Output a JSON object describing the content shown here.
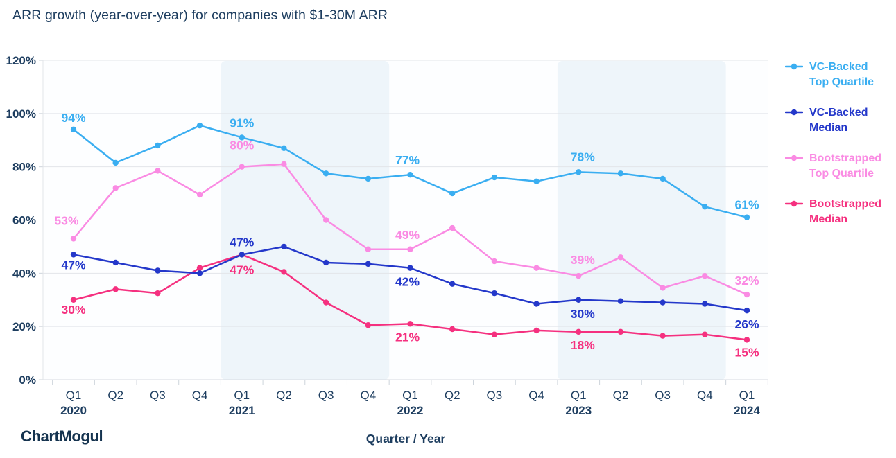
{
  "title": "ARR growth (year-over-year) for companies with $1-30M ARR",
  "footer": {
    "logo": "ChartMogul"
  },
  "colors": {
    "navy_text": "#1d3d5f",
    "grid": "#e2e5e9",
    "axis": "#d6dbe1",
    "tick": "#cdd4db",
    "band": "#eef5fa",
    "plot_bg": "#fdfeff"
  },
  "chart_data": {
    "type": "line",
    "title": "ARR growth (year-over-year) for companies with $1-30M ARR",
    "xlabel": "Quarter / Year",
    "ylabel": "",
    "ylim": [
      0,
      120
    ],
    "y_ticks": [
      120,
      100,
      80,
      60,
      40,
      20,
      0
    ],
    "y_tick_suffix": "%",
    "grid": true,
    "legend_position": "right",
    "quarters": [
      "Q1",
      "Q2",
      "Q3",
      "Q4",
      "Q1",
      "Q2",
      "Q3",
      "Q4",
      "Q1",
      "Q2",
      "Q3",
      "Q4",
      "Q1",
      "Q2",
      "Q3",
      "Q4",
      "Q1"
    ],
    "year_labels": {
      "0": "2020",
      "4": "2021",
      "8": "2022",
      "12": "2023",
      "16": "2024"
    },
    "shaded_quarter_ranges": [
      [
        4,
        7
      ],
      [
        12,
        15
      ]
    ],
    "series": [
      {
        "name": "VC-Backed Top Quartile",
        "legend_lines": [
          "VC-Backed",
          "Top Quartile"
        ],
        "color": "#3aaef1",
        "values": [
          94,
          81.5,
          88,
          95.5,
          91,
          87,
          77.5,
          75.5,
          77,
          70,
          76,
          74.5,
          78,
          77.5,
          75.5,
          65,
          61
        ],
        "labels": [
          {
            "i": 0,
            "text": "94%",
            "dx": 0,
            "dy": -11
          },
          {
            "i": 4,
            "text": "91%",
            "dx": 0,
            "dy": -15
          },
          {
            "i": 8,
            "text": "77%",
            "dx": -4,
            "dy": -15
          },
          {
            "i": 12,
            "text": "78%",
            "dx": 6,
            "dy": -16
          },
          {
            "i": 16,
            "text": "61%",
            "dx": 0,
            "dy": -12
          }
        ]
      },
      {
        "name": "VC-Backed Median",
        "legend_lines": [
          "VC-Backed",
          "Median"
        ],
        "color": "#2438ca",
        "values": [
          47,
          44,
          41,
          40,
          47,
          50,
          44,
          43.5,
          42,
          36,
          32.5,
          28.5,
          30,
          29.5,
          29,
          28.5,
          26
        ],
        "labels": [
          {
            "i": 0,
            "text": "47%",
            "dx": 0,
            "dy": 21
          },
          {
            "i": 4,
            "text": "47%",
            "dx": 0,
            "dy": -12
          },
          {
            "i": 8,
            "text": "42%",
            "dx": -4,
            "dy": 26
          },
          {
            "i": 12,
            "text": "30%",
            "dx": 6,
            "dy": 26
          },
          {
            "i": 16,
            "text": "26%",
            "dx": 0,
            "dy": 26
          }
        ]
      },
      {
        "name": "Bootstrapped Top Quartile",
        "legend_lines": [
          "Bootstrapped",
          "Top Quartile"
        ],
        "color": "#fa8be3",
        "values": [
          53,
          72,
          78.5,
          69.5,
          80,
          81,
          60,
          49,
          49,
          57,
          44.5,
          42,
          39,
          46,
          34.5,
          39,
          32
        ],
        "labels": [
          {
            "i": 0,
            "text": "53%",
            "dx": -10,
            "dy": -20
          },
          {
            "i": 4,
            "text": "80%",
            "dx": 0,
            "dy": -25
          },
          {
            "i": 8,
            "text": "49%",
            "dx": -4,
            "dy": -15
          },
          {
            "i": 12,
            "text": "39%",
            "dx": 6,
            "dy": -17
          },
          {
            "i": 16,
            "text": "32%",
            "dx": 0,
            "dy": -14
          }
        ]
      },
      {
        "name": "Bootstrapped Median",
        "legend_lines": [
          "Bootstrapped",
          "Median"
        ],
        "color": "#f5307f",
        "values": [
          30,
          34,
          32.5,
          42,
          47,
          40.5,
          29,
          20.5,
          21,
          19,
          17,
          18.5,
          18,
          18,
          16.5,
          17,
          15
        ],
        "labels": [
          {
            "i": 0,
            "text": "30%",
            "dx": 0,
            "dy": 20
          },
          {
            "i": 4,
            "text": "47%",
            "dx": 0,
            "dy": 28
          },
          {
            "i": 8,
            "text": "21%",
            "dx": -4,
            "dy": 25
          },
          {
            "i": 12,
            "text": "18%",
            "dx": 6,
            "dy": 25
          },
          {
            "i": 16,
            "text": "15%",
            "dx": 0,
            "dy": 24
          }
        ]
      }
    ]
  }
}
